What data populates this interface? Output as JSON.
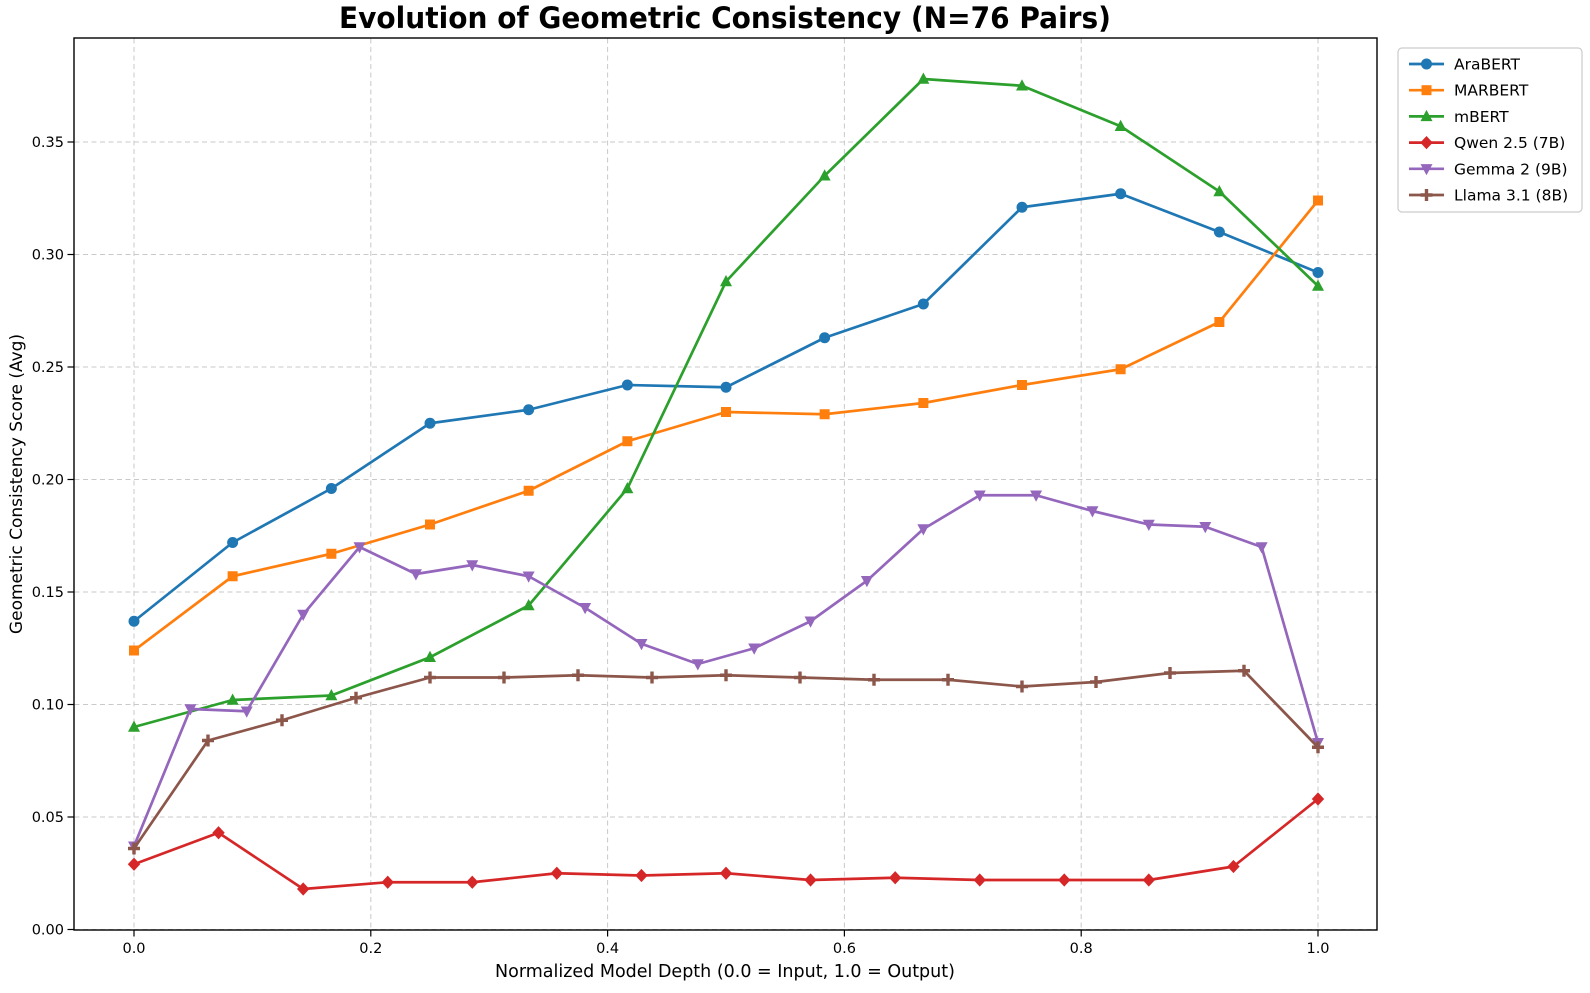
{
  "chart_data": {
    "type": "line",
    "title": "Evolution of Geometric Consistency (N=76 Pairs)",
    "xlabel": "Normalized Model Depth (0.0 = Input, 1.0 = Output)",
    "ylabel": "Geometric Consistency Score (Avg)",
    "grid": true,
    "legend_position": "outside-upper-right",
    "xlim": [
      -0.0507,
      1.0507
    ],
    "ylim": [
      0.0,
      0.396
    ],
    "x_ticks": [
      0.0,
      0.2,
      0.4,
      0.6,
      0.8,
      1.0
    ],
    "x_tick_labels": [
      "0.0",
      "0.2",
      "0.4",
      "0.6",
      "0.8",
      "1.0"
    ],
    "y_ticks": [
      0.0,
      0.05,
      0.1,
      0.15,
      0.2,
      0.25,
      0.3,
      0.35
    ],
    "y_tick_labels": [
      "0.00",
      "0.05",
      "0.10",
      "0.15",
      "0.20",
      "0.25",
      "0.30",
      "0.35"
    ],
    "series": [
      {
        "name": "AraBERT",
        "color": "#1f77b4",
        "marker": "circle",
        "x": [
          0.0,
          0.0833,
          0.1667,
          0.25,
          0.3333,
          0.4167,
          0.5,
          0.5833,
          0.6667,
          0.75,
          0.8333,
          0.9167,
          1.0
        ],
        "values": [
          0.137,
          0.172,
          0.196,
          0.225,
          0.231,
          0.242,
          0.241,
          0.263,
          0.278,
          0.321,
          0.327,
          0.31,
          0.292
        ]
      },
      {
        "name": "MARBERT",
        "color": "#ff7f0e",
        "marker": "square",
        "x": [
          0.0,
          0.0833,
          0.1667,
          0.25,
          0.3333,
          0.4167,
          0.5,
          0.5833,
          0.6667,
          0.75,
          0.8333,
          0.9167,
          1.0
        ],
        "values": [
          0.124,
          0.157,
          0.167,
          0.18,
          0.195,
          0.217,
          0.23,
          0.229,
          0.234,
          0.242,
          0.249,
          0.27,
          0.324
        ]
      },
      {
        "name": "mBERT",
        "color": "#2ca02c",
        "marker": "triangle-up",
        "x": [
          0.0,
          0.0833,
          0.1667,
          0.25,
          0.3333,
          0.4167,
          0.5,
          0.5833,
          0.6667,
          0.75,
          0.8333,
          0.9167,
          1.0
        ],
        "values": [
          0.09,
          0.102,
          0.104,
          0.121,
          0.144,
          0.196,
          0.288,
          0.335,
          0.378,
          0.375,
          0.357,
          0.328,
          0.286
        ]
      },
      {
        "name": "Qwen 2.5 (7B)",
        "color": "#d62728",
        "marker": "diamond",
        "x": [
          0.0,
          0.0714,
          0.1429,
          0.2143,
          0.2857,
          0.3571,
          0.4286,
          0.5,
          0.5714,
          0.6429,
          0.7143,
          0.7857,
          0.8571,
          0.9286,
          1.0
        ],
        "values": [
          0.029,
          0.043,
          0.018,
          0.021,
          0.021,
          0.025,
          0.024,
          0.025,
          0.022,
          0.023,
          0.022,
          0.022,
          0.022,
          0.028,
          0.058
        ]
      },
      {
        "name": "Gemma 2 (9B)",
        "color": "#9467bd",
        "marker": "triangle-down",
        "x": [
          0.0,
          0.0476,
          0.0952,
          0.1429,
          0.1905,
          0.2381,
          0.2857,
          0.3333,
          0.381,
          0.4286,
          0.4762,
          0.5238,
          0.5714,
          0.619,
          0.6667,
          0.7143,
          0.7619,
          0.8095,
          0.8571,
          0.9048,
          0.9524,
          1.0
        ],
        "values": [
          0.037,
          0.098,
          0.097,
          0.14,
          0.17,
          0.158,
          0.162,
          0.157,
          0.143,
          0.127,
          0.118,
          0.125,
          0.137,
          0.155,
          0.178,
          0.193,
          0.193,
          0.186,
          0.18,
          0.179,
          0.17,
          0.083
        ]
      },
      {
        "name": "Llama 3.1 (8B)",
        "color": "#8c564b",
        "marker": "plus",
        "x": [
          0.0,
          0.0625,
          0.125,
          0.1875,
          0.25,
          0.3125,
          0.375,
          0.4375,
          0.5,
          0.5625,
          0.625,
          0.6875,
          0.75,
          0.8125,
          0.875,
          0.9375,
          1.0
        ],
        "values": [
          0.036,
          0.084,
          0.093,
          0.103,
          0.112,
          0.112,
          0.113,
          0.112,
          0.113,
          0.112,
          0.111,
          0.111,
          0.108,
          0.11,
          0.114,
          0.115,
          0.081
        ]
      }
    ]
  }
}
